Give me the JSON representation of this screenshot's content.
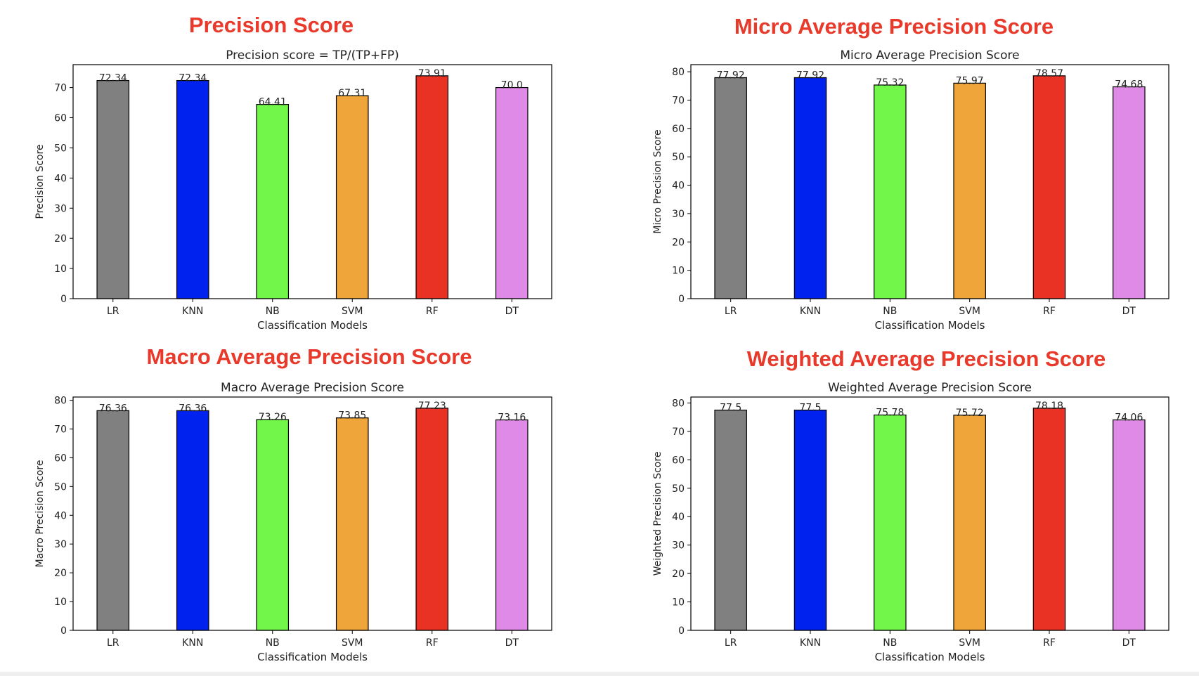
{
  "headings": [
    "Precision Score",
    "Micro Average Precision Score",
    "Macro Average Precision Score",
    "Weighted Average Precision Score"
  ],
  "chart_data": [
    {
      "type": "bar",
      "title": "Precision score = TP/(TP+FP)",
      "xlabel": "Classification Models",
      "ylabel": "Precision Score",
      "categories": [
        "LR",
        "KNN",
        "NB",
        "SVM",
        "RF",
        "DT"
      ],
      "values": [
        72.34,
        72.34,
        64.41,
        67.31,
        73.91,
        70.0
      ],
      "value_labels": [
        "72.34",
        "72.34",
        "64.41",
        "67.31",
        "73.91",
        "70.0"
      ],
      "ylim": [
        0,
        77.6
      ],
      "yticks": [
        0,
        10,
        20,
        30,
        40,
        50,
        60,
        70
      ],
      "colors": [
        "#808080",
        "#0022ee",
        "#72f64a",
        "#f0a53a",
        "#e93224",
        "#df8ae6"
      ],
      "grid": false
    },
    {
      "type": "bar",
      "title": "Micro Average Precision Score",
      "xlabel": "Classification Models",
      "ylabel": "Micro Precision Score",
      "categories": [
        "LR",
        "KNN",
        "NB",
        "SVM",
        "RF",
        "DT"
      ],
      "values": [
        77.92,
        77.92,
        75.32,
        75.97,
        78.57,
        74.68
      ],
      "value_labels": [
        "77.92",
        "77.92",
        "75.32",
        "75.97",
        "78.57",
        "74.68"
      ],
      "ylim": [
        0,
        82.5
      ],
      "yticks": [
        0,
        10,
        20,
        30,
        40,
        50,
        60,
        70,
        80
      ],
      "colors": [
        "#808080",
        "#0022ee",
        "#72f64a",
        "#f0a53a",
        "#e93224",
        "#df8ae6"
      ],
      "grid": false
    },
    {
      "type": "bar",
      "title": "Macro Average Precision Score",
      "xlabel": "Classification Models",
      "ylabel": "Macro Precision Score",
      "categories": [
        "LR",
        "KNN",
        "NB",
        "SVM",
        "RF",
        "DT"
      ],
      "values": [
        76.36,
        76.36,
        73.26,
        73.85,
        77.23,
        73.16
      ],
      "value_labels": [
        "76.36",
        "76.36",
        "73.26",
        "73.85",
        "77.23",
        "73.16"
      ],
      "ylim": [
        0,
        81.1
      ],
      "yticks": [
        0,
        10,
        20,
        30,
        40,
        50,
        60,
        70,
        80
      ],
      "colors": [
        "#808080",
        "#0022ee",
        "#72f64a",
        "#f0a53a",
        "#e93224",
        "#df8ae6"
      ],
      "grid": false
    },
    {
      "type": "bar",
      "title": "Weighted Average Precision Score",
      "xlabel": "Classification Models",
      "ylabel": "Weighted Precision Score",
      "categories": [
        "LR",
        "KNN",
        "NB",
        "SVM",
        "RF",
        "DT"
      ],
      "values": [
        77.5,
        77.5,
        75.78,
        75.72,
        78.18,
        74.06
      ],
      "value_labels": [
        "77.5",
        "77.5",
        "75.78",
        "75.72",
        "78.18",
        "74.06"
      ],
      "ylim": [
        0,
        82.1
      ],
      "yticks": [
        0,
        10,
        20,
        30,
        40,
        50,
        60,
        70,
        80
      ],
      "colors": [
        "#808080",
        "#0022ee",
        "#72f64a",
        "#f0a53a",
        "#e93224",
        "#df8ae6"
      ],
      "grid": false
    }
  ]
}
